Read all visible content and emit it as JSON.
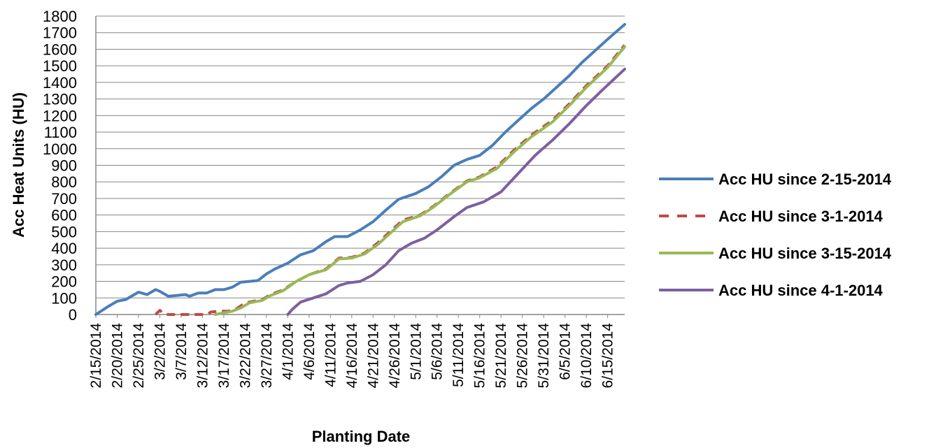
{
  "chart_data": {
    "type": "line",
    "xlabel": "Planting Date",
    "ylabel": "Acc Heat Units (HU)",
    "ylim": [
      0,
      1800
    ],
    "yticks": [
      0,
      100,
      200,
      300,
      400,
      500,
      600,
      700,
      800,
      900,
      1000,
      1100,
      1200,
      1300,
      1400,
      1500,
      1600,
      1700,
      1800
    ],
    "grid": "horizontal",
    "legend_position": "right",
    "x_start": "2/15/2014",
    "x_end": "6/19/2014",
    "x_tick_labels": [
      "2/15/2014",
      "2/20/2014",
      "2/25/2014",
      "3/2/2014",
      "3/7/2014",
      "3/12/2014",
      "3/17/2014",
      "3/22/2014",
      "3/27/2014",
      "4/1/2014",
      "4/6/2014",
      "4/11/2014",
      "4/16/2014",
      "4/21/2014",
      "4/26/2014",
      "5/1/2014",
      "5/6/2014",
      "5/11/2014",
      "5/16/2014",
      "5/21/2014",
      "5/26/2014",
      "5/31/2014",
      "6/5/2014",
      "6/10/2014",
      "6/15/2014"
    ],
    "series": [
      {
        "name": "Acc HU since 2-15-2014",
        "color": "#4A7EBB",
        "dash": "solid",
        "points": [
          [
            "2/15/2014",
            0
          ],
          [
            "2/18/2014",
            50
          ],
          [
            "2/20/2014",
            80
          ],
          [
            "2/22/2014",
            90
          ],
          [
            "2/24/2014",
            120
          ],
          [
            "2/25/2014",
            135
          ],
          [
            "2/27/2014",
            120
          ],
          [
            "3/1/2014",
            150
          ],
          [
            "3/2/2014",
            140
          ],
          [
            "3/4/2014",
            110
          ],
          [
            "3/6/2014",
            115
          ],
          [
            "3/8/2014",
            120
          ],
          [
            "3/9/2014",
            110
          ],
          [
            "3/11/2014",
            130
          ],
          [
            "3/13/2014",
            130
          ],
          [
            "3/15/2014",
            150
          ],
          [
            "3/17/2014",
            150
          ],
          [
            "3/19/2014",
            165
          ],
          [
            "3/21/2014",
            195
          ],
          [
            "3/23/2014",
            200
          ],
          [
            "3/25/2014",
            205
          ],
          [
            "3/27/2014",
            245
          ],
          [
            "3/29/2014",
            275
          ],
          [
            "4/1/2014",
            310
          ],
          [
            "4/4/2014",
            360
          ],
          [
            "4/7/2014",
            385
          ],
          [
            "4/10/2014",
            440
          ],
          [
            "4/12/2014",
            470
          ],
          [
            "4/15/2014",
            470
          ],
          [
            "4/18/2014",
            510
          ],
          [
            "4/21/2014",
            560
          ],
          [
            "4/24/2014",
            630
          ],
          [
            "4/27/2014",
            695
          ],
          [
            "5/1/2014",
            730
          ],
          [
            "5/4/2014",
            770
          ],
          [
            "5/7/2014",
            830
          ],
          [
            "5/10/2014",
            900
          ],
          [
            "5/13/2014",
            935
          ],
          [
            "5/16/2014",
            960
          ],
          [
            "5/19/2014",
            1020
          ],
          [
            "5/22/2014",
            1100
          ],
          [
            "5/25/2014",
            1170
          ],
          [
            "5/28/2014",
            1240
          ],
          [
            "5/31/2014",
            1300
          ],
          [
            "6/3/2014",
            1370
          ],
          [
            "6/6/2014",
            1440
          ],
          [
            "6/9/2014",
            1520
          ],
          [
            "6/12/2014",
            1590
          ],
          [
            "6/15/2014",
            1660
          ],
          [
            "6/19/2014",
            1750
          ]
        ]
      },
      {
        "name": "Acc HU since 3-1-2014",
        "color": "#BE4B48",
        "dash": "dashed",
        "points": [
          [
            "3/1/2014",
            0
          ],
          [
            "3/2/2014",
            25
          ],
          [
            "3/3/2014",
            5
          ],
          [
            "3/4/2014",
            0
          ],
          [
            "3/8/2014",
            0
          ],
          [
            "3/13/2014",
            0
          ],
          [
            "3/14/2014",
            15
          ],
          [
            "3/16/2014",
            20
          ],
          [
            "3/18/2014",
            20
          ],
          [
            "3/20/2014",
            35
          ],
          [
            "3/22/2014",
            70
          ],
          [
            "3/24/2014",
            80
          ],
          [
            "3/26/2014",
            90
          ],
          [
            "3/28/2014",
            120
          ],
          [
            "3/31/2014",
            150
          ],
          [
            "4/3/2014",
            200
          ],
          [
            "4/6/2014",
            240
          ],
          [
            "4/10/2014",
            275
          ],
          [
            "4/13/2014",
            340
          ],
          [
            "4/16/2014",
            345
          ],
          [
            "4/19/2014",
            370
          ],
          [
            "4/22/2014",
            430
          ],
          [
            "4/25/2014",
            500
          ],
          [
            "4/28/2014",
            570
          ],
          [
            "5/2/2014",
            600
          ],
          [
            "5/5/2014",
            650
          ],
          [
            "5/9/2014",
            730
          ],
          [
            "5/13/2014",
            805
          ],
          [
            "5/16/2014",
            830
          ],
          [
            "5/20/2014",
            890
          ],
          [
            "5/24/2014",
            990
          ],
          [
            "5/28/2014",
            1080
          ],
          [
            "6/2/2014",
            1170
          ],
          [
            "6/6/2014",
            1270
          ],
          [
            "6/10/2014",
            1380
          ],
          [
            "6/15/2014",
            1500
          ],
          [
            "6/19/2014",
            1625
          ]
        ]
      },
      {
        "name": "Acc HU since 3-15-2014",
        "color": "#98B954",
        "dash": "solid",
        "points": [
          [
            "3/15/2014",
            0
          ],
          [
            "3/17/2014",
            10
          ],
          [
            "3/19/2014",
            20
          ],
          [
            "3/21/2014",
            40
          ],
          [
            "3/23/2014",
            70
          ],
          [
            "3/24/2014",
            75
          ],
          [
            "3/26/2014",
            85
          ],
          [
            "3/28/2014",
            115
          ],
          [
            "3/31/2014",
            145
          ],
          [
            "4/3/2014",
            200
          ],
          [
            "4/6/2014",
            240
          ],
          [
            "4/10/2014",
            270
          ],
          [
            "4/13/2014",
            335
          ],
          [
            "4/16/2014",
            340
          ],
          [
            "4/19/2014",
            365
          ],
          [
            "4/22/2014",
            420
          ],
          [
            "4/25/2014",
            490
          ],
          [
            "4/28/2014",
            560
          ],
          [
            "5/2/2014",
            595
          ],
          [
            "5/5/2014",
            645
          ],
          [
            "5/9/2014",
            725
          ],
          [
            "5/13/2014",
            800
          ],
          [
            "5/16/2014",
            825
          ],
          [
            "5/20/2014",
            880
          ],
          [
            "5/24/2014",
            980
          ],
          [
            "5/28/2014",
            1070
          ],
          [
            "6/2/2014",
            1160
          ],
          [
            "6/6/2014",
            1260
          ],
          [
            "6/10/2014",
            1370
          ],
          [
            "6/15/2014",
            1490
          ],
          [
            "6/19/2014",
            1615
          ]
        ]
      },
      {
        "name": "Acc HU since 4-1-2014",
        "color": "#7D60A0",
        "dash": "solid",
        "points": [
          [
            "4/1/2014",
            0
          ],
          [
            "4/2/2014",
            30
          ],
          [
            "4/4/2014",
            75
          ],
          [
            "4/7/2014",
            100
          ],
          [
            "4/10/2014",
            125
          ],
          [
            "4/13/2014",
            175
          ],
          [
            "4/15/2014",
            190
          ],
          [
            "4/18/2014",
            200
          ],
          [
            "4/21/2014",
            240
          ],
          [
            "4/24/2014",
            300
          ],
          [
            "4/27/2014",
            385
          ],
          [
            "4/30/2014",
            430
          ],
          [
            "5/3/2014",
            460
          ],
          [
            "5/6/2014",
            510
          ],
          [
            "5/10/2014",
            590
          ],
          [
            "5/13/2014",
            645
          ],
          [
            "5/17/2014",
            680
          ],
          [
            "5/21/2014",
            740
          ],
          [
            "5/25/2014",
            850
          ],
          [
            "5/29/2014",
            960
          ],
          [
            "6/2/2014",
            1050
          ],
          [
            "6/6/2014",
            1150
          ],
          [
            "6/10/2014",
            1260
          ],
          [
            "6/14/2014",
            1360
          ],
          [
            "6/19/2014",
            1480
          ]
        ]
      }
    ]
  }
}
